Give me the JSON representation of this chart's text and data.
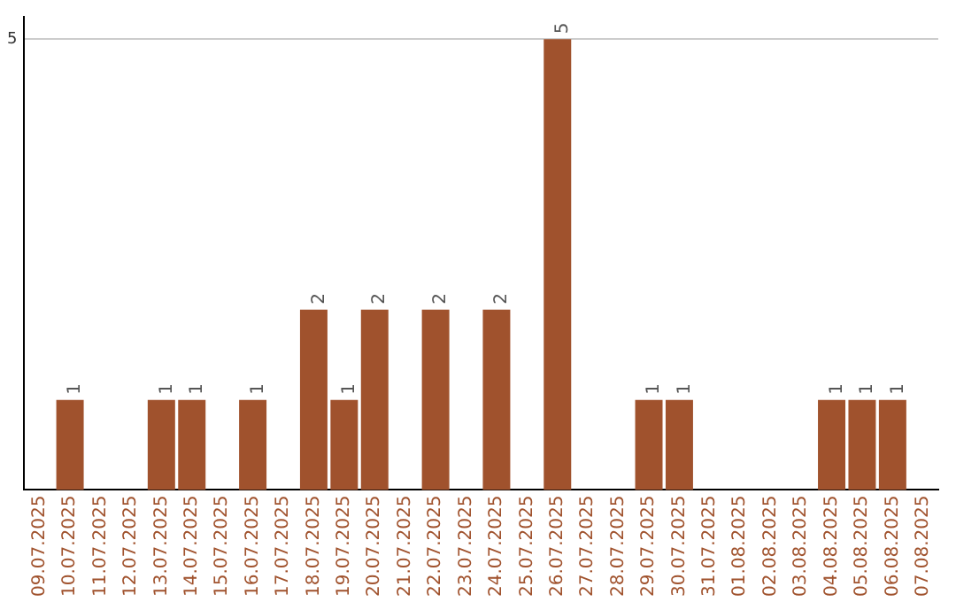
{
  "chart_data": {
    "type": "bar",
    "categories": [
      "09.07.2025",
      "10.07.2025",
      "11.07.2025",
      "12.07.2025",
      "13.07.2025",
      "14.07.2025",
      "15.07.2025",
      "16.07.2025",
      "17.07.2025",
      "18.07.2025",
      "19.07.2025",
      "20.07.2025",
      "21.07.2025",
      "22.07.2025",
      "23.07.2025",
      "24.07.2025",
      "25.07.2025",
      "26.07.2025",
      "27.07.2025",
      "28.07.2025",
      "29.07.2025",
      "30.07.2025",
      "31.07.2025",
      "01.08.2025",
      "02.08.2025",
      "03.08.2025",
      "04.08.2025",
      "05.08.2025",
      "06.08.2025",
      "07.08.2025"
    ],
    "values": [
      null,
      1,
      null,
      null,
      1,
      1,
      null,
      1,
      null,
      2,
      1,
      2,
      null,
      2,
      null,
      2,
      null,
      5,
      null,
      null,
      1,
      1,
      null,
      null,
      null,
      null,
      1,
      1,
      1,
      null
    ],
    "color": "#a0522d",
    "ylim": [
      0,
      5.25
    ],
    "yticks": [
      5
    ],
    "grid": "y",
    "legend": false,
    "data_labels": true
  }
}
